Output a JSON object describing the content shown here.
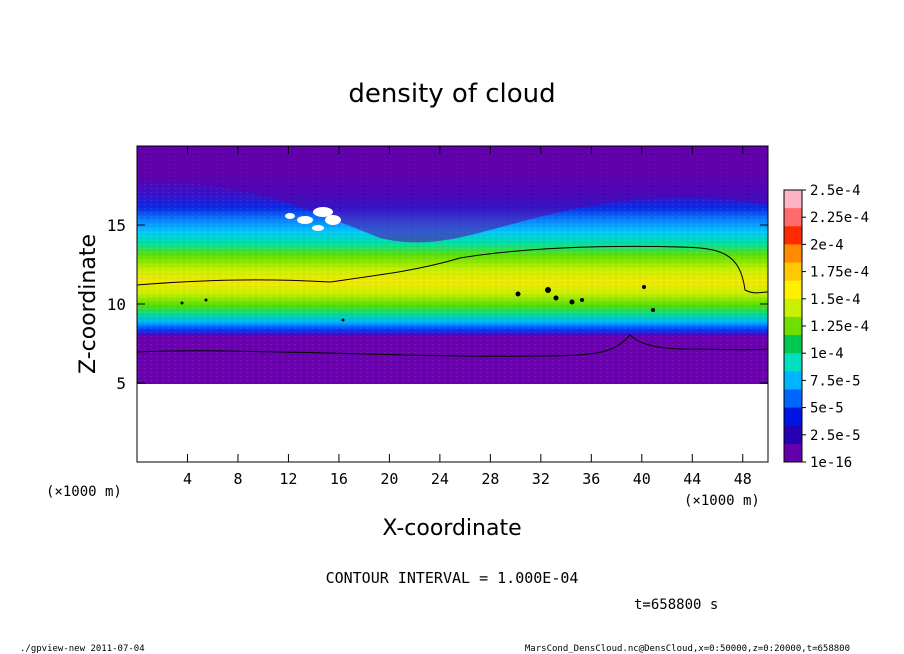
{
  "chart_data": {
    "type": "heatmap",
    "title": "density of cloud",
    "xlabel": "X-coordinate",
    "ylabel": "Z-coordinate",
    "x_unit_left": "(×1000 m)",
    "x_unit_right": "(×1000 m)",
    "xlim": [
      0,
      50
    ],
    "ylim": [
      0,
      20
    ],
    "x_ticks": [
      "4",
      "8",
      "12",
      "16",
      "20",
      "24",
      "28",
      "32",
      "36",
      "40",
      "44",
      "48"
    ],
    "x_tick_values": [
      4,
      8,
      12,
      16,
      20,
      24,
      28,
      32,
      36,
      40,
      44,
      48
    ],
    "y_ticks": [
      "5",
      "10",
      "15"
    ],
    "y_tick_values": [
      5,
      10,
      15
    ],
    "colorbar": {
      "labels": [
        "2.5e-4",
        "2.25e-4",
        "2e-4",
        "1.75e-4",
        "1.5e-4",
        "1.25e-4",
        "1e-4",
        "7.5e-5",
        "5e-5",
        "2.5e-5",
        "1e-16"
      ],
      "colors": [
        "#ffb3c6",
        "#ff6a6a",
        "#ff2a00",
        "#ff8c00",
        "#ffc800",
        "#fff000",
        "#c8f000",
        "#6ee000",
        "#00c850",
        "#00e0c0",
        "#00b4ff",
        "#0064ff",
        "#0014e6",
        "#2800b4",
        "#6400aa"
      ]
    },
    "contour_interval": "CONTOUR INTERVAL = 1.000E-04",
    "time": "t=658800 s",
    "cloud_layer": {
      "z_bottom": 5.0,
      "core_z_range": [
        7,
        11
      ],
      "contour_1e-4_lower_z": 7,
      "contour_1e-4_upper_z": 11.5
    }
  },
  "footer": {
    "left": "./gpview-new   2011-07-04",
    "right": "MarsCond_DensCloud.nc@DensCloud,x=0:50000,z=0:20000,t=658800"
  }
}
